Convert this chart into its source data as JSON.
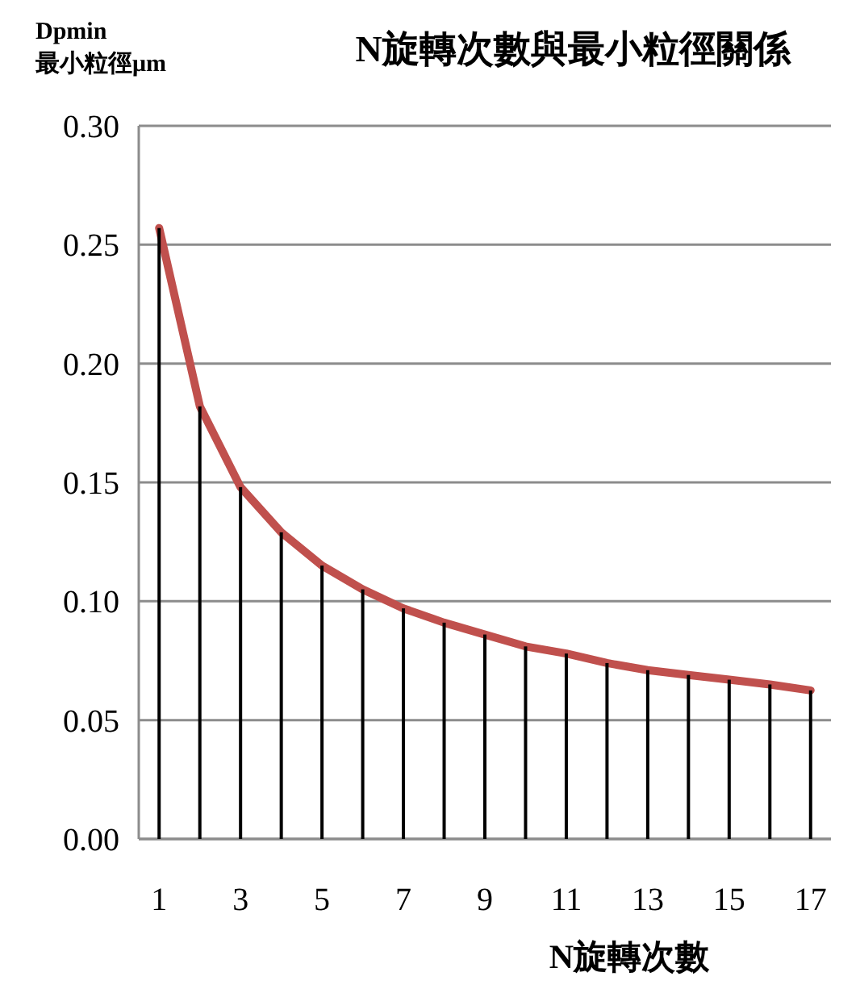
{
  "chart_data": {
    "type": "line",
    "title": "N旋轉次數與最小粒徑關係",
    "xlabel": "N旋轉次數",
    "ylabel": "Dpmin\n最小粒徑μm",
    "x": [
      1,
      2,
      3,
      4,
      5,
      6,
      7,
      8,
      9,
      10,
      11,
      12,
      13,
      14,
      15,
      16,
      17
    ],
    "series": [
      {
        "type": "bar",
        "color": "#000000",
        "values": [
          0.257,
          0.182,
          0.148,
          0.129,
          0.115,
          0.105,
          0.097,
          0.091,
          0.086,
          0.081,
          0.078,
          0.074,
          0.071,
          0.069,
          0.067,
          0.065,
          0.0625
        ]
      },
      {
        "color": "#c0504d",
        "values": [
          0.257,
          0.182,
          0.148,
          0.129,
          0.115,
          0.105,
          0.097,
          0.091,
          0.086,
          0.081,
          0.078,
          0.074,
          0.071,
          0.069,
          0.067,
          0.065,
          0.0625
        ]
      }
    ],
    "xlim": [
      0.5,
      17.5
    ],
    "xticks": [
      1,
      3,
      5,
      7,
      9,
      11,
      13,
      15,
      17
    ],
    "ylim": [
      0,
      0.3
    ],
    "yticks": [
      {
        "value": 0,
        "label": "0.00"
      },
      {
        "value": 0.05,
        "label": "0.05"
      },
      {
        "value": 0.1,
        "label": "0.10"
      },
      {
        "value": 0.15,
        "label": "0.15"
      },
      {
        "value": 0.2,
        "label": "0.20"
      },
      {
        "value": 0.25,
        "label": "0.25"
      },
      {
        "value": 0.3,
        "label": "0.30"
      }
    ],
    "grid": "y",
    "marker": "none",
    "line_style": "solid"
  }
}
